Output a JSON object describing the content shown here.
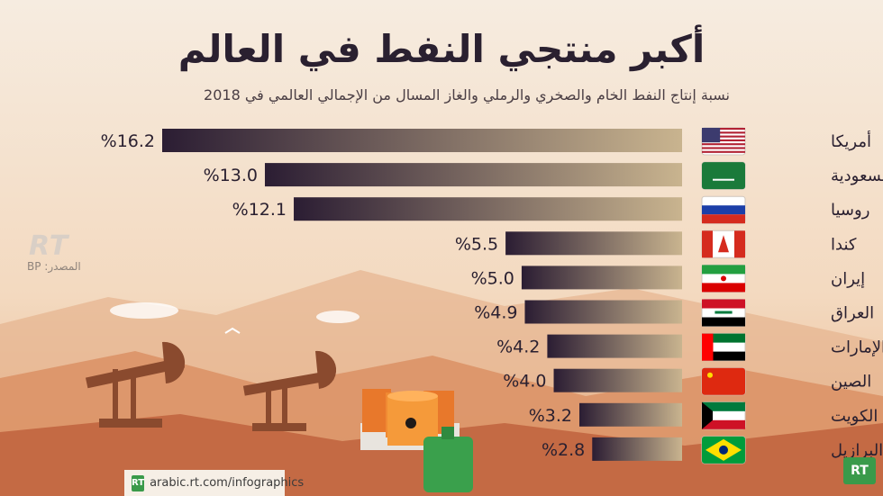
{
  "title": "أكبر منتجي النفط في العالم",
  "subtitle": "نسبة إنتاج النفط الخام والصخري والرملي والغاز المسال من الإجمالي العالمي في 2018",
  "source": "المصدر: BP",
  "watermark": "RT",
  "footer": {
    "logo": "RT",
    "url": "arabic.rt.com/infographics"
  },
  "corner_logo": "RT",
  "colors": {
    "bar_dark": "#2b1d33",
    "bar_light": "#c9b48f",
    "text": "#2a2030"
  },
  "chart_data": {
    "type": "bar",
    "orientation": "horizontal",
    "categories": [
      "أمريكا",
      "السعودية",
      "روسيا",
      "كندا",
      "إيران",
      "العراق",
      "الإمارات",
      "الصين",
      "الكويت",
      "البرازيل"
    ],
    "values": [
      16.2,
      13.0,
      12.1,
      5.5,
      5.0,
      4.9,
      4.2,
      4.0,
      3.2,
      2.8
    ],
    "value_labels": [
      "%16.2",
      "%13.0",
      "%12.1",
      "%5.5",
      "%5.0",
      "%4.9",
      "%4.2",
      "%4.0",
      "%3.2",
      "%2.8"
    ],
    "flags": [
      "us-flag-icon",
      "saudi-flag-icon",
      "russia-flag-icon",
      "canada-flag-icon",
      "iran-flag-icon",
      "iraq-flag-icon",
      "uae-flag-icon",
      "china-flag-icon",
      "kuwait-flag-icon",
      "brazil-flag-icon"
    ],
    "unit": "%",
    "grid": false,
    "legend": "none"
  }
}
